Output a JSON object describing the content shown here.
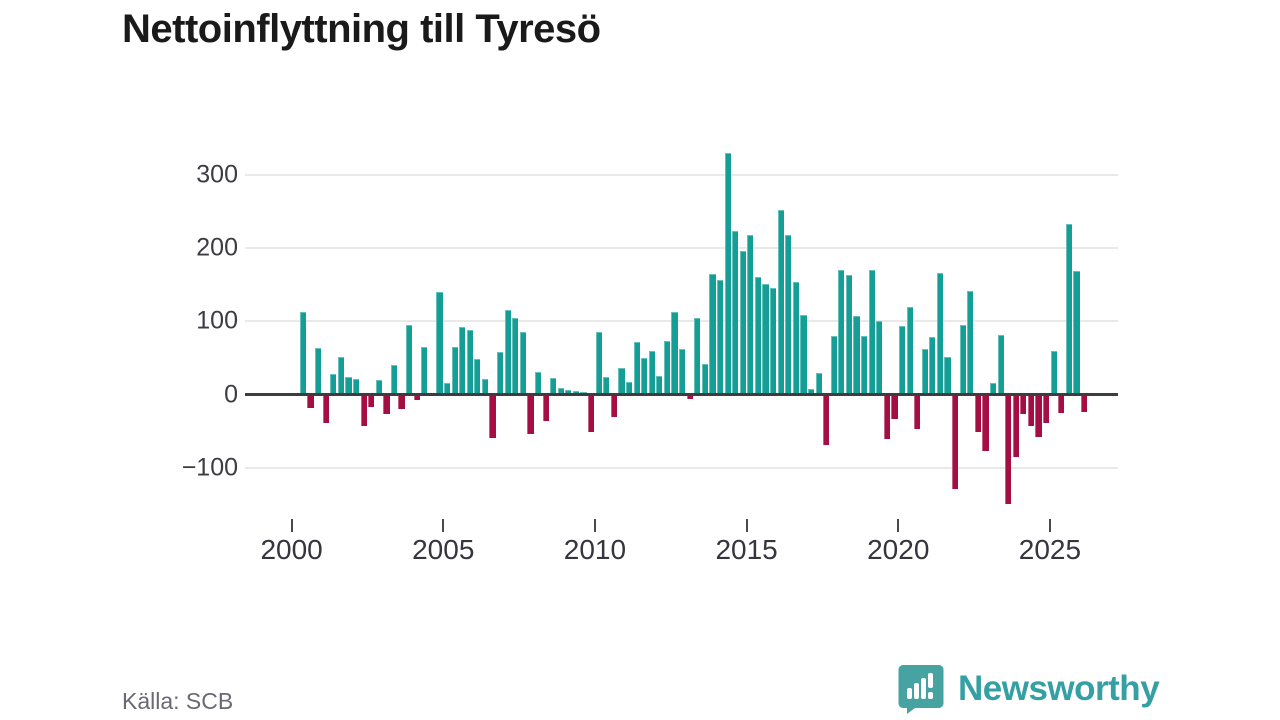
{
  "title": "Nettoinflyttning till Tyresö",
  "source": "Källa: SCB",
  "branding": {
    "logo_text": "Newsworthy",
    "logo_icon": "newsworthy-speech-bubble-bar-chart-icon",
    "brand_color": "#3fa0a3"
  },
  "chart_data": {
    "type": "bar",
    "title": "Nettoinflyttning till Tyresö",
    "frequency": "quarterly",
    "start_period": "2000 K2",
    "end_period": "2026 K1",
    "series": [
      {
        "name": "Nettoinflyttning",
        "values": [
          113,
          -18,
          63,
          -39,
          28,
          52,
          24,
          22,
          -42,
          -17,
          20,
          -27,
          40,
          -20,
          95,
          -7,
          65,
          0,
          140,
          16,
          65,
          92,
          88,
          49,
          22,
          -59,
          58,
          116,
          104,
          86,
          -53,
          31,
          -36,
          23,
          9,
          7,
          5,
          4,
          -51,
          86,
          24,
          -31,
          37,
          17,
          72,
          50,
          59,
          26,
          73,
          113,
          62,
          -6,
          104,
          42,
          165,
          157,
          330,
          223,
          196,
          218,
          161,
          151,
          145,
          252,
          217,
          154,
          108,
          8,
          30,
          -68,
          80,
          170,
          163,
          107,
          80,
          170,
          100,
          -61,
          -33,
          94,
          120,
          -47,
          62,
          78,
          166,
          51,
          -129,
          95,
          141,
          -51,
          -77,
          16,
          82,
          -149,
          -85,
          -26,
          -42,
          -58,
          -38,
          60,
          -25,
          232,
          168,
          -24
        ]
      }
    ],
    "y_ticks": [
      {
        "value": 300,
        "label": "300"
      },
      {
        "value": 200,
        "label": "200"
      },
      {
        "value": 100,
        "label": "100"
      },
      {
        "value": 0,
        "label": "0"
      },
      {
        "value": -100,
        "label": "−100"
      }
    ],
    "x_ticks": [
      "2000",
      "2005",
      "2010",
      "2015",
      "2020",
      "2025"
    ],
    "ylim": [
      -160,
      345
    ],
    "grid": true,
    "legend": false,
    "positive_color": "#149e96",
    "negative_color": "#a50e42",
    "zero_line_color": "#3d3d3d"
  }
}
